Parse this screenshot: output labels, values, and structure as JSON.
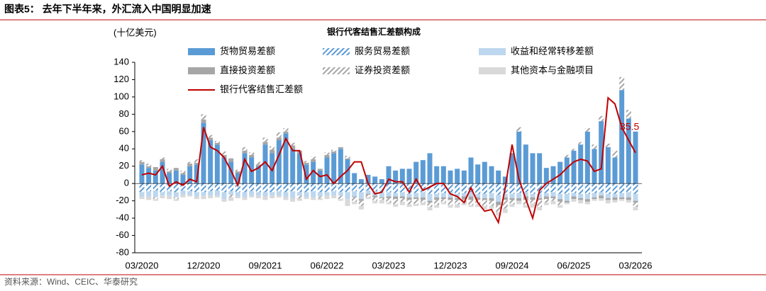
{
  "header": {
    "title": "图表5：  去年下半年来，外汇流入中国明显加速"
  },
  "footer": {
    "source": "资料来源：Wind、CEIC、华泰研究"
  },
  "chart_data": {
    "type": "bar-line",
    "title": "银行代客结售汇差额构成",
    "y_label": "(十亿美元)",
    "categories": [
      "03/2020",
      null,
      null,
      null,
      null,
      null,
      null,
      null,
      null,
      "12/2020",
      null,
      null,
      null,
      null,
      null,
      null,
      null,
      null,
      "09/2021",
      null,
      null,
      null,
      null,
      null,
      null,
      null,
      null,
      "06/2022",
      null,
      null,
      null,
      null,
      null,
      null,
      null,
      null,
      "03/2023",
      null,
      null,
      null,
      null,
      null,
      null,
      null,
      null,
      "12/2023",
      null,
      null,
      null,
      null,
      null,
      null,
      null,
      null,
      "09/2024",
      null,
      null,
      null,
      null,
      null,
      null,
      null,
      null,
      "06/2025",
      null,
      null,
      null,
      null,
      null,
      null,
      null,
      null,
      "03/2026"
    ],
    "ylim": [
      -80,
      140
    ],
    "yticks": [
      -80,
      -60,
      -40,
      -20,
      0,
      20,
      40,
      60,
      80,
      100,
      120,
      140
    ],
    "series": [
      {
        "name": "货物贸易差额",
        "color": "#5b9bd5",
        "hatch": false,
        "values": [
          22,
          18,
          15,
          25,
          12,
          15,
          10,
          20,
          22,
          70,
          50,
          45,
          30,
          25,
          12,
          35,
          30,
          20,
          45,
          35,
          50,
          58,
          40,
          35,
          22,
          25,
          15,
          30,
          35,
          40,
          28,
          12,
          5,
          10,
          8,
          5,
          20,
          15,
          17,
          17,
          25,
          27,
          35,
          20,
          20,
          15,
          17,
          15,
          30,
          22,
          25,
          20,
          15,
          8,
          35,
          60,
          45,
          35,
          35,
          18,
          20,
          25,
          30,
          38,
          45,
          60,
          40,
          72,
          42,
          30,
          108,
          75,
          60
        ]
      },
      {
        "name": "服务贸易差额",
        "color": "#5b9bd5",
        "hatch": true,
        "values": [
          -10,
          -9,
          -8,
          -10,
          -9,
          -10,
          -8,
          -9,
          -10,
          -10,
          -9,
          -8,
          -10,
          -9,
          -10,
          -10,
          -9,
          -10,
          -10,
          -10,
          -9,
          -10,
          -9,
          -10,
          -10,
          -9,
          -10,
          -10,
          -9,
          -10,
          -10,
          -9,
          -10,
          -8,
          -9,
          -10,
          -10,
          -11,
          -10,
          -12,
          -11,
          -10,
          -12,
          -12,
          -11,
          -10,
          -12,
          -11,
          -10,
          -12,
          -12,
          -11,
          -13,
          -12,
          -12,
          -11,
          -10,
          -12,
          -12,
          -11,
          -10,
          -12,
          -12,
          -11,
          -12,
          -12,
          -11,
          -10,
          -12,
          -12,
          -11,
          -10,
          -12
        ]
      },
      {
        "name": "收益和经常转移差额",
        "color": "#bdd7ee",
        "hatch": false,
        "values": [
          -5,
          -6,
          -8,
          -4,
          -5,
          -6,
          -5,
          -4,
          -5,
          -4,
          -5,
          -6,
          -8,
          -4,
          -5,
          -6,
          -5,
          -4,
          -5,
          -4,
          -5,
          -6,
          -8,
          -4,
          -6,
          -7,
          -5,
          -4,
          -5,
          -4,
          -8,
          -6,
          -8,
          -4,
          -5,
          -6,
          -5,
          -4,
          -5,
          -4,
          -5,
          -6,
          -8,
          -4,
          -5,
          -6,
          -5,
          -4,
          -5,
          -4,
          -5,
          -6,
          -8,
          -4,
          -5,
          -6,
          -5,
          -4,
          -5,
          -4,
          -5,
          -6,
          -8,
          -4,
          -5,
          -6,
          -5,
          -4,
          -5,
          -4,
          -5,
          -6,
          -8
        ]
      },
      {
        "name": "直接投资差额",
        "color": "#a6a6a6",
        "hatch": false,
        "values": [
          3,
          2,
          4,
          3,
          2,
          3,
          2,
          3,
          2,
          4,
          3,
          2,
          3,
          4,
          2,
          3,
          3,
          2,
          3,
          4,
          3,
          2,
          4,
          3,
          2,
          3,
          2,
          3,
          2,
          2,
          1,
          -1,
          -2,
          -1,
          -2,
          -1,
          -2,
          -3,
          -2,
          -3,
          -2,
          -3,
          -2,
          -3,
          -2,
          -3,
          -2,
          -3,
          -4,
          -3,
          -2,
          -3,
          -4,
          -3,
          -2,
          -3,
          -4,
          -3,
          -2,
          -3,
          -2,
          -3,
          -2,
          -3,
          -2,
          -3,
          -2,
          -3,
          -2,
          -3,
          -2,
          -3,
          -2
        ]
      },
      {
        "name": "证券投资差额",
        "color": "#a6a6a6",
        "hatch": true,
        "values": [
          2,
          3,
          -2,
          2,
          3,
          -2,
          3,
          2,
          4,
          6,
          3,
          2,
          4,
          -3,
          2,
          4,
          3,
          3,
          5,
          4,
          6,
          4,
          3,
          -3,
          2,
          3,
          -2,
          3,
          2,
          -4,
          3,
          -5,
          -6,
          -3,
          -4,
          -2,
          -5,
          -6,
          -4,
          -5,
          -6,
          -3,
          -5,
          -6,
          -4,
          -6,
          -5,
          -4,
          -6,
          -5,
          -7,
          -6,
          -8,
          -10,
          -5,
          5,
          -6,
          -4,
          -8,
          -4,
          -3,
          -4,
          3,
          2,
          3,
          4,
          5,
          6,
          4,
          8,
          15,
          10,
          -5
        ]
      },
      {
        "name": "其他资本与金融项目",
        "color": "#d9d9d9",
        "hatch": false,
        "values": [
          -3,
          -4,
          -2,
          -3,
          -4,
          -2,
          -3,
          -2,
          -3,
          -4,
          -3,
          -2,
          -3,
          -4,
          -2,
          -3,
          -2,
          -3,
          -4,
          -3,
          -2,
          -3,
          -4,
          -3,
          -2,
          -3,
          -2,
          -4,
          -3,
          -2,
          -8,
          -3,
          -4,
          -2,
          -3,
          -4,
          -2,
          -3,
          -4,
          -3,
          -2,
          -3,
          -4,
          -3,
          -2,
          -3,
          -4,
          -3,
          -2,
          -3,
          -4,
          -3,
          -4,
          -5,
          -3,
          -4,
          -3,
          -5,
          -4,
          -3,
          -4,
          -3,
          -2,
          -3,
          -4,
          -3,
          -2,
          -3,
          -4,
          -3,
          -2,
          -3,
          -4
        ]
      },
      {
        "name": "银行代客结售汇差额",
        "color": "#c00000",
        "line": true,
        "values": [
          10,
          12,
          10,
          20,
          -3,
          2,
          -2,
          5,
          2,
          65,
          42,
          38,
          30,
          15,
          -2,
          28,
          14,
          18,
          25,
          15,
          33,
          52,
          38,
          38,
          5,
          15,
          8,
          10,
          0,
          8,
          15,
          25,
          25,
          0,
          -12,
          -10,
          5,
          2,
          2,
          -10,
          5,
          -8,
          -4,
          0,
          0,
          -12,
          -15,
          -22,
          -5,
          -22,
          -32,
          -30,
          -45,
          -5,
          45,
          5,
          -18,
          -40,
          -8,
          0,
          5,
          10,
          18,
          25,
          28,
          26,
          14,
          17,
          99,
          92,
          65,
          50,
          35.5
        ]
      }
    ],
    "annotation": "35.5"
  }
}
